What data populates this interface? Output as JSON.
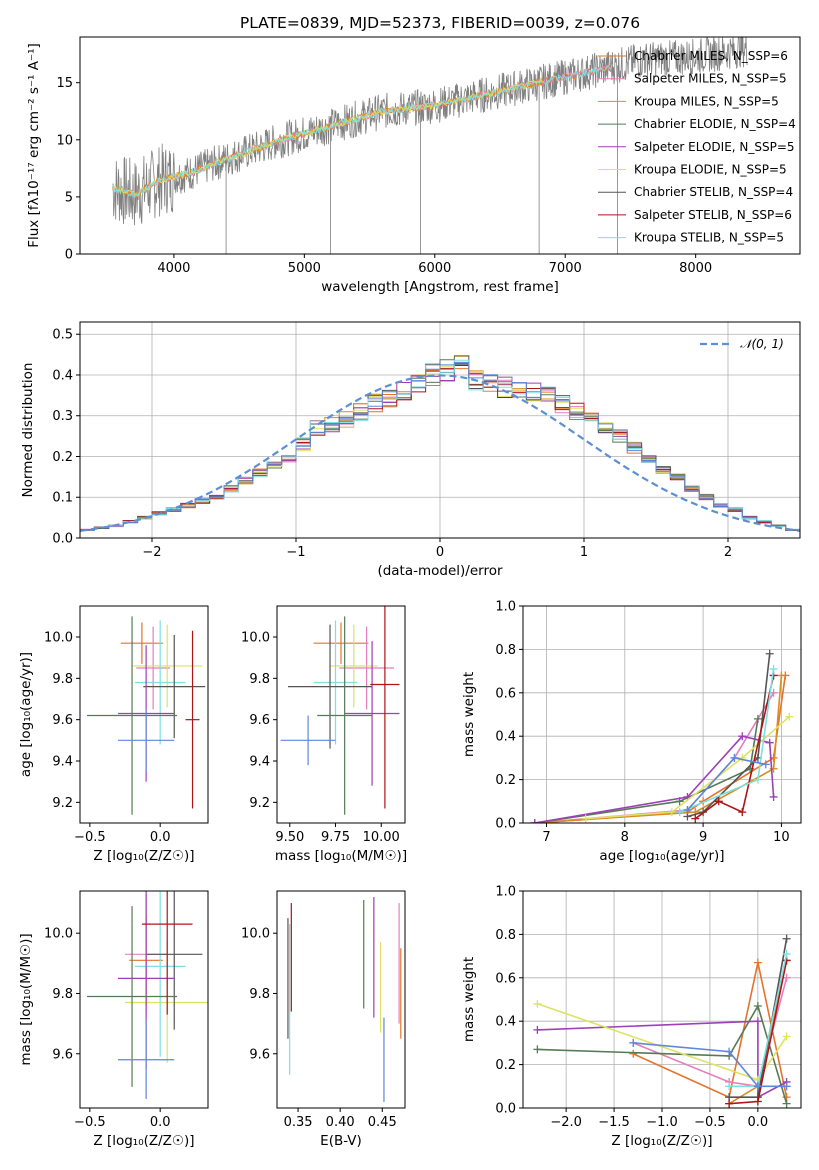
{
  "figure_title": "PLATE=0839, MJD=52373, FIBERID=0039, z=0.076",
  "colors": {
    "data_gray": "#808080",
    "normal_dashed": "#5b8fd6",
    "models": [
      "#e5732a",
      "#e47fbe",
      "#d98c23",
      "#557b55",
      "#9d3fb7",
      "#dde263",
      "#555555",
      "#ad1518",
      "#7de0e0",
      "#5f86dd"
    ]
  },
  "chart_data": [
    {
      "id": "spectrum",
      "type": "line",
      "xlabel": "wavelength [Angstrom, rest frame]",
      "ylabel": "Flux [fλ10⁻¹⁷ erg cm⁻² s⁻¹ A⁻¹]",
      "xlim": [
        3280,
        8800
      ],
      "ylim": [
        0,
        19
      ],
      "xticks": [
        "4000",
        "5000",
        "6000",
        "7000",
        "8000"
      ],
      "yticks": [
        "0",
        "5",
        "10",
        "15"
      ],
      "legend_position": "right",
      "legend": [
        {
          "label": "Chabrier MILES, N_SSP=6",
          "color": "#e5732a"
        },
        {
          "label": "Salpeter MILES, N_SSP=5",
          "color": "#e47fbe"
        },
        {
          "label": "Kroupa MILES, N_SSP=5",
          "color": "#d98c23"
        },
        {
          "label": "Chabrier ELODIE, N_SSP=4",
          "color": "#557b55"
        },
        {
          "label": "Salpeter ELODIE, N_SSP=5",
          "color": "#9d3fb7"
        },
        {
          "label": "Kroupa ELODIE, N_SSP=5",
          "color": "#dde263"
        },
        {
          "label": "Chabrier STELIB, N_SSP=4",
          "color": "#555555"
        },
        {
          "label": "Salpeter STELIB, N_SSP=6",
          "color": "#ad1518"
        },
        {
          "label": "Kroupa STELIB, N_SSP=5",
          "color": "#7de0e0"
        }
      ],
      "data_envelope": {
        "x": [
          3530,
          3700,
          3900,
          4100,
          4400,
          4800,
          5200,
          5600,
          6000,
          6400,
          6800,
          7200,
          7600,
          8000,
          8400
        ],
        "y": [
          5.8,
          5.2,
          6.5,
          7.0,
          8.3,
          9.9,
          11.2,
          12.5,
          13.0,
          14.0,
          15.0,
          16.0,
          17.0,
          17.3,
          18.0
        ]
      },
      "model_segments": [
        {
          "color": "#e5732a",
          "x": [
            3530,
            7360
          ]
        },
        {
          "color": "#e47fbe",
          "x": [
            3530,
            7360
          ]
        },
        {
          "color": "#d98c23",
          "x": [
            3530,
            6830
          ]
        },
        {
          "color": "#dde263",
          "x": [
            3530,
            6830
          ]
        },
        {
          "color": "#7de0e0",
          "x": [
            3530,
            7360
          ]
        }
      ]
    },
    {
      "id": "residuals",
      "type": "histogram",
      "xlabel": "(data-model)/error",
      "ylabel": "Normed distribution",
      "xlim": [
        -2.5,
        2.5
      ],
      "ylim": [
        0,
        0.53
      ],
      "xticks": [
        "−2",
        "−1",
        "0",
        "1",
        "2"
      ],
      "yticks": [
        "0.0",
        "0.1",
        "0.2",
        "0.3",
        "0.4",
        "0.5"
      ],
      "grid": true,
      "legend": [
        {
          "label": "𝒩(0, 1)",
          "style": "dashed",
          "color": "#5b8fd6"
        }
      ],
      "legend_position": "top-right",
      "bin_width": 0.1,
      "bin_start": -2.5,
      "envelope": [
        0.02,
        0.025,
        0.03,
        0.04,
        0.05,
        0.06,
        0.07,
        0.08,
        0.09,
        0.1,
        0.12,
        0.14,
        0.16,
        0.18,
        0.2,
        0.23,
        0.27,
        0.28,
        0.29,
        0.31,
        0.33,
        0.34,
        0.36,
        0.38,
        0.4,
        0.41,
        0.42,
        0.39,
        0.38,
        0.37,
        0.37,
        0.36,
        0.35,
        0.33,
        0.31,
        0.29,
        0.27,
        0.25,
        0.22,
        0.19,
        0.17,
        0.15,
        0.12,
        0.1,
        0.08,
        0.07,
        0.05,
        0.04,
        0.03,
        0.02
      ]
    },
    {
      "id": "age_vs_Z",
      "type": "errorbar",
      "xlabel": "Z [log₁₀(Z/Z☉)]",
      "ylabel": "age  [log₁₀(age/yr)]",
      "xlim": [
        -0.57,
        0.34
      ],
      "ylim": [
        9.1,
        10.15
      ],
      "xticks": [
        "−0.5",
        "0.0"
      ],
      "yticks": [
        "9.2",
        "9.4",
        "9.6",
        "9.8",
        "10.0"
      ],
      "points": [
        {
          "x": -0.13,
          "y": 9.97,
          "xerr": 0.15,
          "yerr": 0.1,
          "color": "#e5732a"
        },
        {
          "x": -0.05,
          "y": 9.85,
          "xerr": 0.12,
          "yerr": 0.2,
          "color": "#e47fbe"
        },
        {
          "x": 0.05,
          "y": 9.86,
          "xerr": 0.25,
          "yerr": 0.2,
          "color": "#dde263"
        },
        {
          "x": 0.0,
          "y": 9.78,
          "xerr": 0.18,
          "yerr": 0.3,
          "color": "#7de0e0"
        },
        {
          "x": 0.1,
          "y": 9.76,
          "xerr": 0.22,
          "yerr": 0.25,
          "color": "#555555"
        },
        {
          "x": -0.1,
          "y": 9.63,
          "xerr": 0.2,
          "yerr": 0.33,
          "color": "#9d3fb7"
        },
        {
          "x": -0.2,
          "y": 9.62,
          "xerr": 0.32,
          "yerr": 0.48,
          "color": "#557b55"
        },
        {
          "x": -0.1,
          "y": 9.5,
          "xerr": 0.2,
          "yerr": 0.15,
          "color": "#5f86dd"
        },
        {
          "x": 0.23,
          "y": 9.6,
          "xerr": 0.05,
          "yerr": 0.43,
          "color": "#ad1518"
        }
      ]
    },
    {
      "id": "age_vs_mass",
      "type": "errorbar",
      "xlabel": "mass [log₁₀(M/M☉)]",
      "ylabel": "",
      "xlim": [
        9.43,
        10.13
      ],
      "ylim": [
        9.1,
        10.15
      ],
      "xticks": [
        "9.50",
        "9.75",
        "10.00"
      ],
      "yticks": [
        "9.2",
        "9.4",
        "9.6",
        "9.8",
        "10.0"
      ],
      "points": [
        {
          "x": 9.78,
          "y": 9.97,
          "xerr": 0.15,
          "yerr": 0.1,
          "color": "#e5732a"
        },
        {
          "x": 9.92,
          "y": 9.85,
          "xerr": 0.15,
          "yerr": 0.2,
          "color": "#e47fbe"
        },
        {
          "x": 9.85,
          "y": 9.86,
          "xerr": 0.13,
          "yerr": 0.2,
          "color": "#dde263"
        },
        {
          "x": 9.75,
          "y": 9.78,
          "xerr": 0.12,
          "yerr": 0.3,
          "color": "#7de0e0"
        },
        {
          "x": 9.72,
          "y": 9.76,
          "xerr": 0.23,
          "yerr": 0.3,
          "color": "#555555"
        },
        {
          "x": 9.95,
          "y": 9.63,
          "xerr": 0.15,
          "yerr": 0.35,
          "color": "#9d3fb7"
        },
        {
          "x": 9.8,
          "y": 9.62,
          "xerr": 0.15,
          "yerr": 0.48,
          "color": "#557b55"
        },
        {
          "x": 9.6,
          "y": 9.5,
          "xerr": 0.15,
          "yerr": 0.12,
          "color": "#5f86dd"
        },
        {
          "x": 10.02,
          "y": 9.77,
          "xerr": 0.08,
          "yerr": 0.6,
          "color": "#ad1518"
        }
      ]
    },
    {
      "id": "mass_weight_vs_age",
      "type": "line",
      "xlabel": "age  [log₁₀(age/yr)]",
      "ylabel": "mass weight",
      "xlim": [
        6.7,
        10.25
      ],
      "ylim": [
        0,
        1.0
      ],
      "xticks": [
        "7",
        "8",
        "9",
        "10"
      ],
      "yticks": [
        "0.0",
        "0.2",
        "0.4",
        "0.6",
        "0.8",
        "1.0"
      ],
      "grid": true,
      "series": [
        {
          "color": "#e5732a",
          "x": [
            6.85,
            8.8,
            9.0,
            9.9,
            10.05
          ],
          "y": [
            0.0,
            0.05,
            0.1,
            0.3,
            0.68
          ]
        },
        {
          "color": "#e47fbe",
          "x": [
            6.85,
            8.8,
            9.4,
            9.9
          ],
          "y": [
            0.0,
            0.06,
            0.3,
            0.6
          ]
        },
        {
          "color": "#d98c23",
          "x": [
            6.85,
            8.9,
            9.9,
            10.0
          ],
          "y": [
            0.0,
            0.05,
            0.25,
            0.68
          ]
        },
        {
          "color": "#557b55",
          "x": [
            6.85,
            8.7,
            9.6,
            9.7
          ],
          "y": [
            0.0,
            0.1,
            0.25,
            0.48
          ]
        },
        {
          "color": "#9d3fb7",
          "x": [
            6.85,
            8.8,
            9.5,
            9.85,
            9.9
          ],
          "y": [
            0.0,
            0.12,
            0.4,
            0.37,
            0.12
          ]
        },
        {
          "color": "#dde263",
          "x": [
            7.5,
            8.6,
            9.5,
            10.1
          ],
          "y": [
            0.02,
            0.05,
            0.3,
            0.49
          ]
        },
        {
          "color": "#555555",
          "x": [
            8.8,
            9.0,
            9.7,
            9.85
          ],
          "y": [
            0.03,
            0.05,
            0.3,
            0.78
          ]
        },
        {
          "color": "#ad1518",
          "x": [
            8.9,
            9.2,
            9.5,
            9.9
          ],
          "y": [
            0.02,
            0.1,
            0.05,
            0.68
          ]
        },
        {
          "color": "#7de0e0",
          "x": [
            8.7,
            9.7,
            9.9
          ],
          "y": [
            0.05,
            0.2,
            0.71
          ]
        },
        {
          "color": "#5f86dd",
          "x": [
            8.8,
            9.4,
            9.8
          ],
          "y": [
            0.06,
            0.3,
            0.27
          ]
        }
      ]
    },
    {
      "id": "mass_vs_Z",
      "type": "errorbar",
      "xlabel": "Z [log₁₀(Z/Z☉)]",
      "ylabel": "mass [log₁₀(M/M☉)]",
      "xlim": [
        -0.57,
        0.34
      ],
      "ylim": [
        9.42,
        10.14
      ],
      "xticks": [
        "−0.5",
        "0.0"
      ],
      "yticks": [
        "9.6",
        "9.8",
        "10.0"
      ],
      "points": [
        {
          "x": -0.1,
          "y": 9.91,
          "xerr": 0.12,
          "yerr": 0.15,
          "color": "#e5732a"
        },
        {
          "x": -0.1,
          "y": 9.93,
          "xerr": 0.15,
          "yerr": 0.2,
          "color": "#e47fbe"
        },
        {
          "x": 0.05,
          "y": 9.77,
          "xerr": 0.3,
          "yerr": 0.2,
          "color": "#dde263"
        },
        {
          "x": 0.0,
          "y": 9.89,
          "xerr": 0.18,
          "yerr": 0.3,
          "color": "#7de0e0"
        },
        {
          "x": 0.1,
          "y": 9.93,
          "xerr": 0.2,
          "yerr": 0.25,
          "color": "#555555"
        },
        {
          "x": -0.1,
          "y": 9.85,
          "xerr": 0.2,
          "yerr": 0.3,
          "color": "#9d3fb7"
        },
        {
          "x": -0.2,
          "y": 9.79,
          "xerr": 0.32,
          "yerr": 0.3,
          "color": "#557b55"
        },
        {
          "x": -0.1,
          "y": 9.58,
          "xerr": 0.2,
          "yerr": 0.13,
          "color": "#5f86dd"
        },
        {
          "x": 0.05,
          "y": 10.03,
          "xerr": 0.18,
          "yerr": 0.3,
          "color": "#ad1518"
        }
      ]
    },
    {
      "id": "mass_vs_ebv",
      "type": "errorbar",
      "xlabel": "E(B-V)",
      "ylabel": "",
      "xlim": [
        0.325,
        0.477
      ],
      "ylim": [
        9.42,
        10.14
      ],
      "xticks": [
        "0.35",
        "0.40",
        "0.45"
      ],
      "yticks": [
        "9.6",
        "9.8",
        "10.0"
      ],
      "points": [
        {
          "x": 0.342,
          "y": 9.92,
          "xerr": 0,
          "yerr": 0.18,
          "color": "#ad1518"
        },
        {
          "x": 0.338,
          "y": 9.85,
          "xerr": 0,
          "yerr": 0.2,
          "color": "#555555"
        },
        {
          "x": 0.34,
          "y": 9.78,
          "xerr": 0,
          "yerr": 0.25,
          "color": "#7de0e0"
        },
        {
          "x": 0.428,
          "y": 9.93,
          "xerr": 0,
          "yerr": 0.18,
          "color": "#557b55"
        },
        {
          "x": 0.44,
          "y": 9.92,
          "xerr": 0,
          "yerr": 0.2,
          "color": "#9d3fb7"
        },
        {
          "x": 0.448,
          "y": 9.82,
          "xerr": 0,
          "yerr": 0.15,
          "color": "#dde263"
        },
        {
          "x": 0.452,
          "y": 9.58,
          "xerr": 0,
          "yerr": 0.14,
          "color": "#5f86dd"
        },
        {
          "x": 0.47,
          "y": 9.9,
          "xerr": 0,
          "yerr": 0.2,
          "color": "#e47fbe"
        },
        {
          "x": 0.472,
          "y": 9.8,
          "xerr": 0,
          "yerr": 0.15,
          "color": "#e5732a"
        }
      ]
    },
    {
      "id": "mass_weight_vs_Z",
      "type": "line",
      "xlabel": "Z [log₁₀(Z/Z☉)]",
      "ylabel": "mass weight",
      "xlim": [
        -2.45,
        0.45
      ],
      "ylim": [
        0,
        1.0
      ],
      "xticks": [
        "−2.0",
        "−1.5",
        "−1.0",
        "−0.5",
        "0.0"
      ],
      "yticks": [
        "0.0",
        "0.2",
        "0.4",
        "0.6",
        "0.8",
        "1.0"
      ],
      "grid": true,
      "series": [
        {
          "color": "#e5732a",
          "x": [
            -1.3,
            -0.3,
            0.0,
            0.3
          ],
          "y": [
            0.25,
            0.05,
            0.67,
            0.05
          ]
        },
        {
          "color": "#e47fbe",
          "x": [
            -1.3,
            -0.3,
            0.0,
            0.3
          ],
          "y": [
            0.3,
            0.12,
            0.1,
            0.6
          ]
        },
        {
          "color": "#d98c23",
          "x": [
            -0.3,
            0.0,
            0.3
          ],
          "y": [
            0.02,
            0.1,
            0.68
          ]
        },
        {
          "color": "#557b55",
          "x": [
            -2.3,
            -0.3,
            0.0,
            0.3
          ],
          "y": [
            0.27,
            0.24,
            0.47,
            0.02
          ]
        },
        {
          "color": "#9d3fb7",
          "x": [
            -2.3,
            0.0,
            0.0,
            0.3
          ],
          "y": [
            0.36,
            0.4,
            0.05,
            0.12
          ]
        },
        {
          "color": "#dde263",
          "x": [
            -2.3,
            0.0,
            0.3
          ],
          "y": [
            0.48,
            0.13,
            0.33
          ]
        },
        {
          "color": "#555555",
          "x": [
            -0.3,
            0.0,
            0.3
          ],
          "y": [
            0.05,
            0.05,
            0.78
          ]
        },
        {
          "color": "#ad1518",
          "x": [
            -0.3,
            0.0,
            0.3
          ],
          "y": [
            0.02,
            0.03,
            0.68
          ]
        },
        {
          "color": "#7de0e0",
          "x": [
            -0.3,
            0.0,
            0.3
          ],
          "y": [
            0.1,
            0.1,
            0.71
          ]
        },
        {
          "color": "#5f86dd",
          "x": [
            -1.3,
            -0.3,
            0.0,
            0.3
          ],
          "y": [
            0.3,
            0.26,
            0.1,
            0.1
          ]
        }
      ]
    }
  ]
}
